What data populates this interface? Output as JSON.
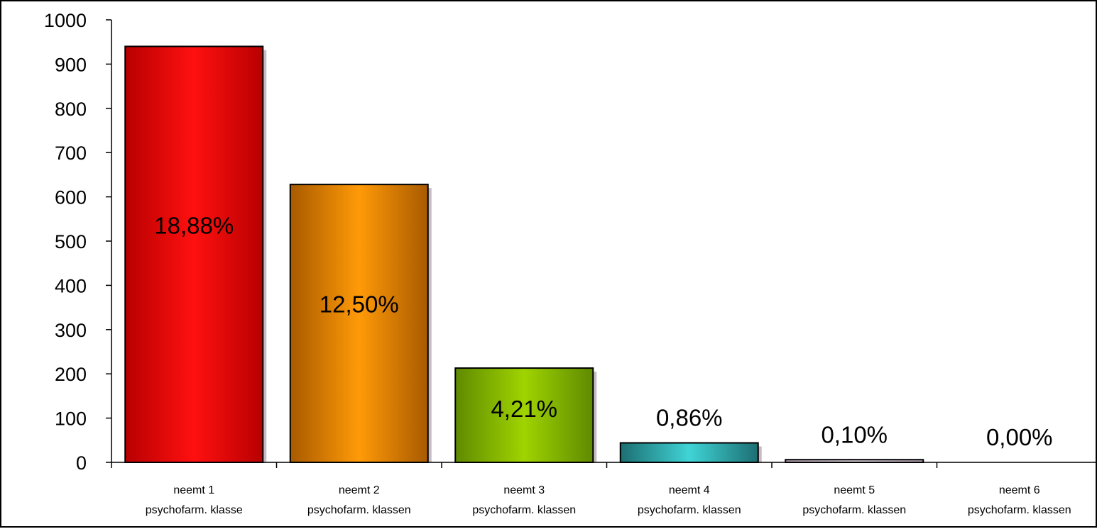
{
  "chart_data": {
    "type": "bar",
    "categories": [
      [
        "neemt 1",
        "psychofarm. klasse"
      ],
      [
        "neemt 2",
        "psychofarm. klassen"
      ],
      [
        "neemt 3",
        "psychofarm. klassen"
      ],
      [
        "neemt 4",
        "psychofarm. klassen"
      ],
      [
        "neemt 5",
        "psychofarm. klassen"
      ],
      [
        "neemt 6",
        "psychofarm. klassen"
      ]
    ],
    "values": [
      940,
      628,
      213,
      44,
      6,
      0
    ],
    "data_labels": [
      "18,88%",
      "12,50%",
      "4,21%",
      "0,86%",
      "0,10%",
      "0,00%"
    ],
    "y_ticks": [
      "0",
      "100",
      "200",
      "300",
      "400",
      "500",
      "600",
      "700",
      "800",
      "900",
      "1000"
    ],
    "ylim": [
      0,
      1000
    ],
    "title": "",
    "xlabel": "",
    "ylabel": "",
    "grid": false,
    "legend": "none",
    "bar_colors": [
      {
        "edge": "#b80000",
        "mid": "#ff1010",
        "label_inside": true
      },
      {
        "edge": "#a85a00",
        "mid": "#ff9a08",
        "label_inside": true
      },
      {
        "edge": "#5f8a00",
        "mid": "#9fd400",
        "label_inside": true
      },
      {
        "edge": "#1d6e72",
        "mid": "#3fd4d6",
        "label_inside": false
      },
      {
        "edge": "#b9a9b9",
        "mid": "#e6dde6",
        "label_inside": false
      },
      {
        "edge": "#cccccc",
        "mid": "#eeeeee",
        "label_inside": false
      }
    ]
  }
}
